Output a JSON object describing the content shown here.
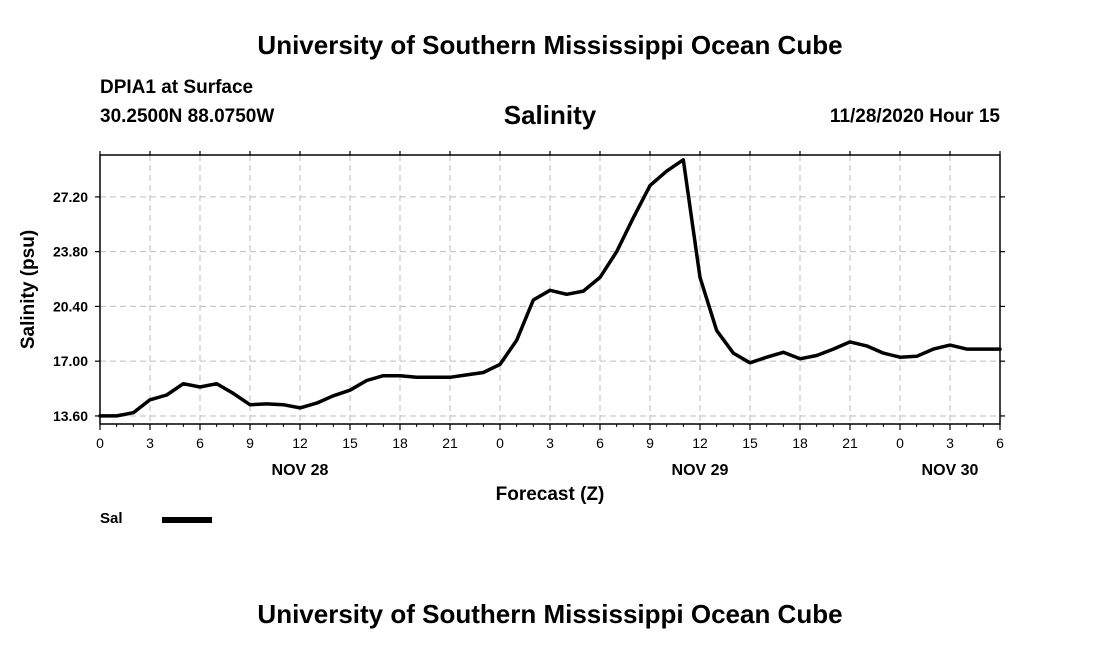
{
  "header": {
    "main_title": "University of Southern Mississippi Ocean Cube",
    "station": "DPIA1 at Surface",
    "coords": "30.2500N 88.0750W",
    "datetime": "11/28/2020 Hour 15",
    "footer_title": "University of Southern Mississippi Ocean Cube"
  },
  "chart_data": {
    "type": "line",
    "title": "Salinity",
    "xlabel": "Forecast (Z)",
    "ylabel": "Salinity (psu)",
    "ylim": [
      13.1,
      29.8
    ],
    "xlim": [
      0,
      54
    ],
    "y_ticks": [
      "13.60",
      "17.00",
      "20.40",
      "23.80",
      "27.20"
    ],
    "y_tick_values": [
      13.6,
      17.0,
      20.4,
      23.8,
      27.2
    ],
    "x_ticks": [
      "0",
      "3",
      "6",
      "9",
      "12",
      "15",
      "18",
      "21",
      "0",
      "3",
      "6",
      "9",
      "12",
      "15",
      "18",
      "21",
      "0",
      "3",
      "6"
    ],
    "x_tick_hours": [
      0,
      3,
      6,
      9,
      12,
      15,
      18,
      21,
      24,
      27,
      30,
      33,
      36,
      39,
      42,
      45,
      48,
      51,
      54
    ],
    "day_labels": [
      {
        "label": "NOV 28",
        "hour": 12
      },
      {
        "label": "NOV 29",
        "hour": 36
      },
      {
        "label": "NOV 30",
        "hour": 51
      }
    ],
    "grid": true,
    "legend": {
      "position": "bottom-left",
      "label": "Sal"
    },
    "series": [
      {
        "name": "Sal",
        "x": [
          0,
          1,
          2,
          3,
          4,
          5,
          6,
          7,
          8,
          9,
          10,
          11,
          12,
          13,
          14,
          15,
          16,
          17,
          18,
          19,
          20,
          21,
          22,
          23,
          24,
          25,
          26,
          27,
          28,
          29,
          30,
          31,
          32,
          33,
          34,
          35,
          36,
          37,
          38,
          39,
          40,
          41,
          42,
          43,
          44,
          45,
          46,
          47,
          48,
          49,
          50,
          51,
          52,
          53,
          54
        ],
        "values": [
          13.6,
          13.6,
          13.8,
          14.6,
          14.9,
          15.6,
          15.4,
          15.6,
          15.0,
          14.3,
          14.35,
          14.3,
          14.1,
          14.4,
          14.85,
          15.2,
          15.8,
          16.1,
          16.1,
          16.0,
          16.0,
          16.0,
          16.15,
          16.3,
          16.8,
          18.3,
          20.8,
          21.4,
          21.15,
          21.35,
          22.2,
          23.8,
          25.9,
          27.9,
          28.8,
          29.5,
          22.2,
          18.9,
          17.5,
          16.9,
          17.25,
          17.55,
          17.15,
          17.35,
          17.75,
          18.2,
          17.95,
          17.5,
          17.25,
          17.3,
          17.75,
          18.0,
          17.75,
          17.75,
          17.75
        ]
      }
    ]
  }
}
